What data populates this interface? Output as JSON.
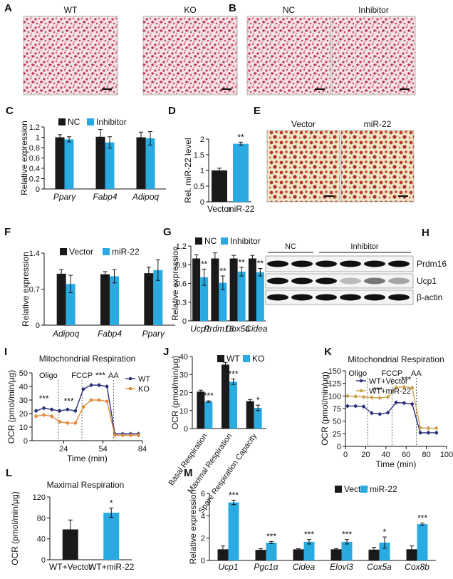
{
  "colors": {
    "dark": "#1a1a1a",
    "cyan": "#29abe2",
    "orange": "#e08a3c",
    "navy": "#2b2f7a",
    "tan": "#c9a04a",
    "stain": "#c0354f",
    "light": "#f2e0e4",
    "yellowbg": "#f0ead0"
  },
  "panels": {
    "A": {
      "letter": "A",
      "images": [
        {
          "label": "WT",
          "kind": "pink"
        },
        {
          "label": "KO",
          "kind": "pink"
        }
      ]
    },
    "B": {
      "letter": "B",
      "images": [
        {
          "label": "NC",
          "kind": "pink"
        },
        {
          "label": "Inhibitor",
          "kind": "pink"
        }
      ]
    },
    "E": {
      "letter": "E",
      "images": [
        {
          "label": "Vector",
          "kind": "yellow"
        },
        {
          "label": "miR-22",
          "kind": "yellow"
        }
      ]
    },
    "H": {
      "letter": "H",
      "groups": [
        "NC",
        "Inhibitor"
      ],
      "rows": [
        "Prdm16",
        "Ucp1",
        "β-actin"
      ]
    }
  },
  "chart_data": [
    {
      "id": "C",
      "type": "bar",
      "legend": [
        "NC",
        "Inhibitor"
      ],
      "categories": [
        "Pparγ",
        "Fabp4",
        "Adipoq"
      ],
      "series": [
        {
          "name": "NC",
          "values": [
            1.0,
            1.01,
            1.0
          ],
          "err": [
            0.05,
            0.14,
            0.1
          ]
        },
        {
          "name": "Inhibitor",
          "values": [
            0.96,
            0.9,
            0.98
          ],
          "err": [
            0.05,
            0.11,
            0.13
          ]
        }
      ],
      "ylabel": "Relative expression",
      "ylim": [
        0,
        1.2
      ],
      "ticks": [
        0,
        0.2,
        0.4,
        0.6,
        0.8,
        1,
        1.2
      ],
      "tickLabels": [
        "0",
        "0.2",
        "0.4",
        "0.6",
        "0.8",
        "1",
        "1.2"
      ],
      "stars": []
    },
    {
      "id": "D",
      "type": "bar",
      "categories": [
        "Vector",
        "miR-22"
      ],
      "series": [
        {
          "name": "level",
          "values": [
            1.0,
            1.85
          ],
          "err": [
            0.07,
            0.05
          ],
          "colors": [
            "dark",
            "cyan"
          ]
        }
      ],
      "ylabel": "Rel. miR-22 level",
      "ylim": [
        0,
        2
      ],
      "ticks": [
        0,
        0.5,
        1,
        1.5,
        2
      ],
      "tickLabels": [
        "0",
        "0.5",
        "1",
        "1.5",
        "2"
      ],
      "stars": [
        {
          "cat": 1,
          "text": "**"
        }
      ]
    },
    {
      "id": "F",
      "type": "bar",
      "legend": [
        "Vector",
        "miR-22"
      ],
      "categories": [
        "Adipoq",
        "Fabp4",
        "Pparγ"
      ],
      "series": [
        {
          "name": "Vector",
          "values": [
            1.0,
            0.99,
            1.01
          ],
          "err": [
            0.08,
            0.05,
            0.12
          ]
        },
        {
          "name": "miR-22",
          "values": [
            0.8,
            0.95,
            1.07
          ],
          "err": [
            0.17,
            0.13,
            0.2
          ]
        }
      ],
      "ylabel": "Relative expression",
      "ylim": [
        0,
        1.4
      ],
      "ticks": [
        0,
        0.7,
        1.4
      ],
      "tickLabels": [
        "0",
        "0.7",
        "1.4"
      ],
      "stars": []
    },
    {
      "id": "G",
      "type": "bar",
      "legend": [
        "NC",
        "Inhibitor"
      ],
      "categories": [
        "Ucp1",
        "Prdm16",
        "Cox5a",
        "Cidea"
      ],
      "series": [
        {
          "name": "NC",
          "values": [
            1.0,
            1.0,
            1.0,
            1.0
          ],
          "err": [
            0.06,
            0.09,
            0.05,
            0.05
          ]
        },
        {
          "name": "Inhibitor",
          "values": [
            0.7,
            0.61,
            0.79,
            0.78
          ],
          "err": [
            0.13,
            0.11,
            0.07,
            0.06
          ]
        }
      ],
      "ylabel": "Relative expression",
      "ylim": [
        0,
        1.2
      ],
      "ticks": [
        0,
        0.3,
        0.6,
        0.9,
        1.2
      ],
      "tickLabels": [
        "0",
        "0.3",
        "0.6",
        "0.9",
        "1.2"
      ],
      "stars": [
        {
          "cat": 0,
          "text": "**"
        },
        {
          "cat": 1,
          "text": "**"
        },
        {
          "cat": 2,
          "text": "**"
        },
        {
          "cat": 3,
          "text": "**"
        }
      ]
    },
    {
      "id": "I",
      "type": "line",
      "title": "Mitochondrial Respiration",
      "legend": [
        "WT",
        "KO"
      ],
      "x": [
        3,
        9,
        15,
        21,
        27,
        33,
        39,
        45,
        51,
        57,
        63,
        69,
        75,
        81
      ],
      "series": [
        {
          "name": "WT",
          "values": [
            22,
            24,
            23,
            22,
            23,
            22,
            38,
            41,
            41,
            40,
            5,
            5,
            5,
            5
          ]
        },
        {
          "name": "KO",
          "values": [
            18,
            19,
            18,
            14,
            13,
            13,
            25,
            30,
            30,
            29,
            4,
            4,
            4,
            4
          ]
        }
      ],
      "xlim": [
        0,
        84
      ],
      "xticks": [
        24,
        54,
        84
      ],
      "xlabel": "Time (min)",
      "ylabel": "OCR (pmol/min/μg)",
      "ylim": [
        0,
        50
      ],
      "yticks": [
        0,
        10,
        20,
        30,
        40,
        50
      ],
      "markers": [
        {
          "x": 20,
          "label": "Oligo"
        },
        {
          "x": 38,
          "label": "FCCP"
        },
        {
          "x": 62,
          "label": "AA"
        }
      ],
      "stars": [
        {
          "x": 9,
          "y": 29,
          "text": "***"
        },
        {
          "x": 28,
          "y": 27,
          "text": "***"
        },
        {
          "x": 52,
          "y": 46,
          "text": "***"
        }
      ]
    },
    {
      "id": "J",
      "type": "bar",
      "legend": [
        "WT",
        "KO"
      ],
      "categories": [
        "Basal Respiration",
        "Maximal Respiration",
        "Spare Respiration Capacity"
      ],
      "series": [
        {
          "name": "WT",
          "values": [
            20.5,
            35.5,
            15.2
          ],
          "err": [
            0.8,
            1.2,
            0.9
          ]
        },
        {
          "name": "KO",
          "values": [
            15.0,
            26.0,
            11.5
          ],
          "err": [
            0.4,
            1.5,
            1.5
          ]
        }
      ],
      "ylabel": "OCR (pmol/min/μg)",
      "ylim": [
        0,
        40
      ],
      "ticks": [
        0,
        10,
        20,
        30,
        40
      ],
      "tickLabels": [
        "0",
        "10",
        "20",
        "30",
        "40"
      ],
      "stars": [
        {
          "cat": 0,
          "text": "***"
        },
        {
          "cat": 1,
          "text": "***"
        },
        {
          "cat": 2,
          "text": "*"
        }
      ]
    },
    {
      "id": "K",
      "type": "line",
      "title": "Mitochondrial Respiration",
      "legend": [
        "WT+Vector",
        "WT+miR-22"
      ],
      "x": [
        2,
        10,
        18,
        26,
        34,
        42,
        50,
        58,
        66,
        74,
        82,
        90
      ],
      "series": [
        {
          "name": "WT+Vector",
          "values": [
            80,
            80,
            79,
            66,
            64,
            67,
            87,
            86,
            84,
            27,
            27,
            27
          ]
        },
        {
          "name": "WT+miR-22",
          "values": [
            100,
            99,
            98,
            97,
            96,
            98,
            117,
            118,
            116,
            37,
            36,
            36
          ]
        }
      ],
      "xlim": [
        0,
        100
      ],
      "xticks": [
        0,
        20,
        40,
        60,
        80,
        100
      ],
      "xlabel": "Time (min)",
      "ylabel": "OCR (pmol/min/μg)",
      "ylim": [
        0,
        150
      ],
      "yticks": [
        0,
        25,
        50,
        75,
        100,
        125,
        150
      ],
      "markers": [
        {
          "x": 22,
          "label": "Oligo"
        },
        {
          "x": 46,
          "label": "FCCP"
        },
        {
          "x": 70,
          "label": "AA"
        }
      ],
      "stars": [
        {
          "x": 32,
          "y": 106,
          "text": "***"
        },
        {
          "x": 60,
          "y": 127,
          "text": "***"
        }
      ]
    },
    {
      "id": "L",
      "type": "bar",
      "title": "Maximal Respiration",
      "categories": [
        "WT+Vector",
        "WT+miR-22"
      ],
      "series": [
        {
          "name": "val",
          "values": [
            58,
            90
          ],
          "err": [
            18,
            9
          ],
          "colors": [
            "dark",
            "cyan"
          ]
        }
      ],
      "ylabel": "OCR (pmol/min/μg)",
      "ylim": [
        0,
        120
      ],
      "ticks": [
        0,
        40,
        80,
        120
      ],
      "tickLabels": [
        "0",
        "40",
        "80",
        "120"
      ],
      "stars": [
        {
          "cat": 1,
          "text": "*"
        }
      ]
    },
    {
      "id": "M",
      "type": "bar",
      "legend": [
        "Vector",
        "miR-22"
      ],
      "categories": [
        "Ucp1",
        "Pgc1α",
        "Cidea",
        "Elovl3",
        "Cox5a",
        "Cox8b"
      ],
      "series": [
        {
          "name": "Vector",
          "values": [
            1.0,
            0.95,
            1.0,
            1.0,
            0.97,
            1.0
          ],
          "err": [
            0.3,
            0.1,
            0.05,
            0.07,
            0.2,
            0.3
          ]
        },
        {
          "name": "miR-22",
          "values": [
            5.2,
            1.6,
            1.67,
            1.67,
            1.6,
            3.25
          ],
          "err": [
            0.2,
            0.1,
            0.2,
            0.2,
            0.5,
            0.1
          ]
        }
      ],
      "ylabel": "Relative expression",
      "ylim": [
        0,
        6
      ],
      "ticks": [
        0,
        2,
        4,
        6
      ],
      "tickLabels": [
        "0",
        "2",
        "4",
        "6"
      ],
      "stars": [
        {
          "cat": 0,
          "text": "***"
        },
        {
          "cat": 1,
          "text": "***"
        },
        {
          "cat": 2,
          "text": "***"
        },
        {
          "cat": 3,
          "text": "***"
        },
        {
          "cat": 4,
          "text": "*"
        },
        {
          "cat": 5,
          "text": "***"
        }
      ]
    }
  ]
}
